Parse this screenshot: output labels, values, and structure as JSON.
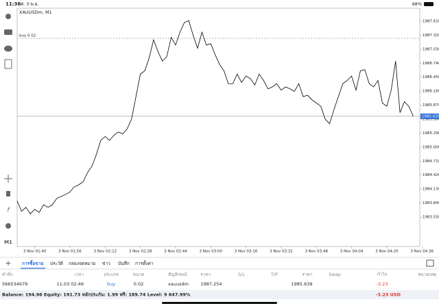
{
  "status": {
    "time": "11:36",
    "date": "ศ. 3 พ.ย.",
    "battery": "98%"
  },
  "chart_data": {
    "type": "line",
    "title": "XAUUSDm, M1",
    "color": "#000000",
    "x": [
      "3 Nov 01:32",
      "3 Nov 01:34",
      "3 Nov 01:36",
      "3 Nov 01:38",
      "3 Nov 01:40",
      "3 Nov 01:42",
      "3 Nov 01:44",
      "3 Nov 01:46",
      "3 Nov 01:48",
      "3 Nov 01:50",
      "3 Nov 01:52",
      "3 Nov 01:54",
      "3 Nov 01:56",
      "3 Nov 01:58",
      "3 Nov 02:00",
      "3 Nov 02:02",
      "3 Nov 02:04",
      "3 Nov 02:06",
      "3 Nov 02:08",
      "3 Nov 02:10",
      "3 Nov 02:12",
      "3 Nov 02:14",
      "3 Nov 02:16",
      "3 Nov 02:18",
      "3 Nov 02:20",
      "3 Nov 02:22",
      "3 Nov 02:24",
      "3 Nov 02:26",
      "3 Nov 02:28",
      "3 Nov 02:30",
      "3 Nov 02:32",
      "3 Nov 02:34",
      "3 Nov 02:36",
      "3 Nov 02:38",
      "3 Nov 02:40",
      "3 Nov 02:42",
      "3 Nov 02:44",
      "3 Nov 02:46",
      "3 Nov 02:48",
      "3 Nov 02:50",
      "3 Nov 02:52",
      "3 Nov 02:54",
      "3 Nov 02:56",
      "3 Nov 02:58",
      "3 Nov 03:00",
      "3 Nov 03:02",
      "3 Nov 03:04",
      "3 Nov 03:06",
      "3 Nov 03:08",
      "3 Nov 03:10",
      "3 Nov 03:12",
      "3 Nov 03:14",
      "3 Nov 03:16",
      "3 Nov 03:18",
      "3 Nov 03:20",
      "3 Nov 03:22",
      "3 Nov 03:24",
      "3 Nov 03:26",
      "3 Nov 03:28",
      "3 Nov 03:30",
      "3 Nov 03:32",
      "3 Nov 03:34",
      "3 Nov 03:36",
      "3 Nov 03:38",
      "3 Nov 03:40",
      "3 Nov 03:42",
      "3 Nov 03:44",
      "3 Nov 03:46",
      "3 Nov 03:48",
      "3 Nov 03:50",
      "3 Nov 03:52",
      "3 Nov 03:54",
      "3 Nov 03:56",
      "3 Nov 03:58",
      "3 Nov 04:00",
      "3 Nov 04:02",
      "3 Nov 04:04",
      "3 Nov 04:06",
      "3 Nov 04:08",
      "3 Nov 04:10",
      "3 Nov 04:12",
      "3 Nov 04:14",
      "3 Nov 04:16",
      "3 Nov 04:18",
      "3 Nov 04:20",
      "3 Nov 04:22",
      "3 Nov 04:24",
      "3 Nov 04:26",
      "3 Nov 04:28",
      "3 Nov 04:30",
      "3 Nov 04:32"
    ],
    "values": [
      1983.884,
      1983.67,
      1983.75,
      1983.617,
      1983.71,
      1983.644,
      1983.804,
      1983.75,
      1983.804,
      1983.937,
      1983.977,
      1984.018,
      1984.071,
      1984.178,
      1984.218,
      1984.285,
      1984.472,
      1984.605,
      1984.846,
      1985.139,
      1985.22,
      1985.139,
      1985.246,
      1985.313,
      1985.273,
      1985.38,
      1985.58,
      1986.047,
      1986.515,
      1986.582,
      1986.849,
      1987.223,
      1986.982,
      1986.782,
      1986.875,
      1987.276,
      1987.116,
      1987.383,
      1987.583,
      1987.623,
      1987.316,
      1987.049,
      1987.383,
      1987.116,
      1987.143,
      1986.916,
      1986.715,
      1986.582,
      1986.315,
      1986.315,
      1986.515,
      1986.341,
      1986.475,
      1986.421,
      1986.288,
      1986.515,
      1986.381,
      1986.208,
      1986.248,
      1986.315,
      1986.181,
      1986.248,
      1986.208,
      1986.154,
      1986.315,
      1986.047,
      1986.074,
      1985.981,
      1985.914,
      1985.847,
      1985.58,
      1985.487,
      1985.78,
      1986.047,
      1986.315,
      1986.381,
      1986.475,
      1986.181,
      1986.582,
      1986.608,
      1986.315,
      1986.248,
      1986.381,
      1985.914,
      1985.847,
      1986.181,
      1986.782,
      1985.714,
      1985.941,
      1985.847,
      1985.639
    ],
    "xlim": [
      "3 Nov 01:32",
      "3 Nov 04:35"
    ],
    "xticks": [
      "3 Nov 01:40",
      "3 Nov 01:56",
      "3 Nov 02:12",
      "3 Nov 02:28",
      "3 Nov 02:44",
      "3 Nov 03:00",
      "3 Nov 03:16",
      "3 Nov 03:32",
      "3 Nov 03:48",
      "3 Nov 04:04",
      "3 Nov 04:20",
      "3 Nov 04:36"
    ],
    "ylim": [
      1982.94,
      1987.88
    ],
    "yticks": [
      {
        "value": 1987.61,
        "label": "1987.610"
      },
      {
        "value": 1987.32,
        "label": "1987.320"
      },
      {
        "value": 1987.03,
        "label": "1987.030"
      },
      {
        "value": 1986.74,
        "label": "1986.740"
      },
      {
        "value": 1986.45,
        "label": "1986.450"
      },
      {
        "value": 1986.16,
        "label": "1986.160"
      },
      {
        "value": 1985.87,
        "label": "1985.870"
      },
      {
        "value": 1985.58,
        "label": "1985.580"
      },
      {
        "value": 1985.29,
        "label": "1985.290"
      },
      {
        "value": 1985.0,
        "label": "1985.000"
      },
      {
        "value": 1984.71,
        "label": "1984.710"
      },
      {
        "value": 1984.42,
        "label": "1984.420"
      },
      {
        "value": 1984.13,
        "label": "1984.130"
      },
      {
        "value": 1983.84,
        "label": "1983.840"
      },
      {
        "value": 1983.55,
        "label": "1983.550"
      }
    ],
    "order_line": {
      "label": "buy 0.02",
      "value": 1987.254
    },
    "bid": 1985.639,
    "timeframe": "M1"
  },
  "tabs": [
    "การซื้อขาย",
    "ประวัติ",
    "กล่องจดหมาย",
    "ข่าว",
    "บันทึก",
    "การตั้งค่า"
  ],
  "table": {
    "columns": [
      "คำสั่ง",
      "เวลา",
      "ประเภท",
      "ขนาด",
      "สัญลักษณ์",
      "ราคา",
      "S/L",
      "T/P",
      "ราคา",
      "Swap",
      "กำไร",
      "หมายเหตุ"
    ],
    "row": {
      "order": "566534679",
      "time": "11.03 02:49",
      "type": "buy",
      "size": "0.02",
      "symbol": "xauusdm",
      "open_price": "1987.254",
      "price": "1985.639",
      "profit": "-3.23"
    }
  },
  "footer": {
    "summary": "Balance: 194.96 Equity: 191.73 หลักประกัน: 1.99 ฟรี: 189.74 Level: 9 647.99%",
    "profit": "-3.23 USD"
  }
}
